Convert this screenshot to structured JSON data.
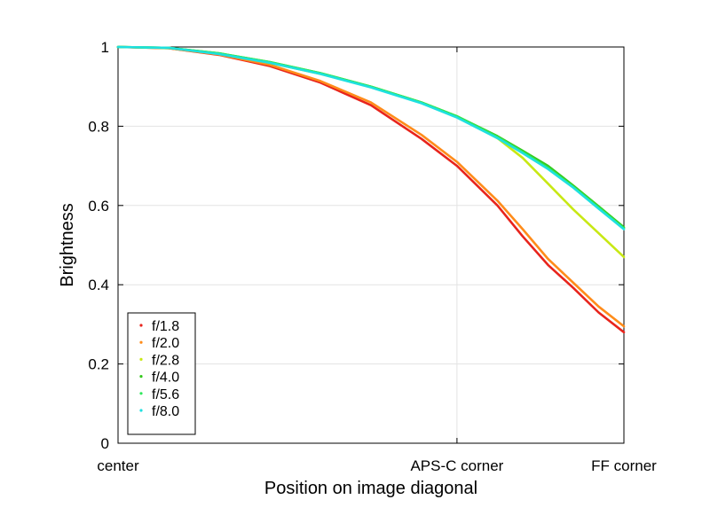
{
  "chart_data": {
    "type": "line",
    "title": "",
    "xlabel": "Position on image diagonal",
    "ylabel": "Brightness",
    "xlim": [
      0,
      1
    ],
    "ylim": [
      0,
      1
    ],
    "grid": true,
    "legend_position": "bottom-left",
    "x_ticks": [
      {
        "value": 0,
        "label": "center"
      },
      {
        "value": 0.67,
        "label": "APS-C corner"
      },
      {
        "value": 1.0,
        "label": "FF corner"
      }
    ],
    "y_ticks": [
      {
        "value": 0,
        "label": "0"
      },
      {
        "value": 0.2,
        "label": "0.2"
      },
      {
        "value": 0.4,
        "label": "0.4"
      },
      {
        "value": 0.6,
        "label": "0.6"
      },
      {
        "value": 0.8,
        "label": "0.8"
      },
      {
        "value": 1.0,
        "label": "1"
      }
    ],
    "x": [
      0,
      0.1,
      0.2,
      0.3,
      0.4,
      0.5,
      0.6,
      0.67,
      0.75,
      0.8,
      0.85,
      0.9,
      0.95,
      1.0
    ],
    "series": [
      {
        "name": "f/1.8",
        "color": "#e8241c",
        "values": [
          1.0,
          0.997,
          0.98,
          0.952,
          0.91,
          0.853,
          0.768,
          0.7,
          0.6,
          0.522,
          0.45,
          0.392,
          0.33,
          0.28
        ]
      },
      {
        "name": "f/2.0",
        "color": "#ff8c1a",
        "values": [
          1.0,
          0.997,
          0.981,
          0.955,
          0.914,
          0.86,
          0.778,
          0.71,
          0.612,
          0.54,
          0.465,
          0.405,
          0.345,
          0.295
        ]
      },
      {
        "name": "f/2.8",
        "color": "#c8e814",
        "values": [
          1.0,
          0.998,
          0.983,
          0.96,
          0.932,
          0.9,
          0.86,
          0.825,
          0.77,
          0.72,
          0.655,
          0.59,
          0.53,
          0.47
        ]
      },
      {
        "name": "f/4.0",
        "color": "#34c81c",
        "values": [
          1.0,
          0.998,
          0.984,
          0.962,
          0.934,
          0.9,
          0.86,
          0.825,
          0.775,
          0.738,
          0.7,
          0.65,
          0.598,
          0.545
        ]
      },
      {
        "name": "f/5.6",
        "color": "#2ee85a",
        "values": [
          1.0,
          0.998,
          0.984,
          0.962,
          0.934,
          0.9,
          0.86,
          0.825,
          0.773,
          0.735,
          0.695,
          0.647,
          0.595,
          0.542
        ]
      },
      {
        "name": "f/8.0",
        "color": "#1ee0e0",
        "values": [
          1.0,
          0.998,
          0.982,
          0.96,
          0.932,
          0.898,
          0.858,
          0.822,
          0.77,
          0.732,
          0.692,
          0.645,
          0.592,
          0.54
        ]
      }
    ]
  }
}
